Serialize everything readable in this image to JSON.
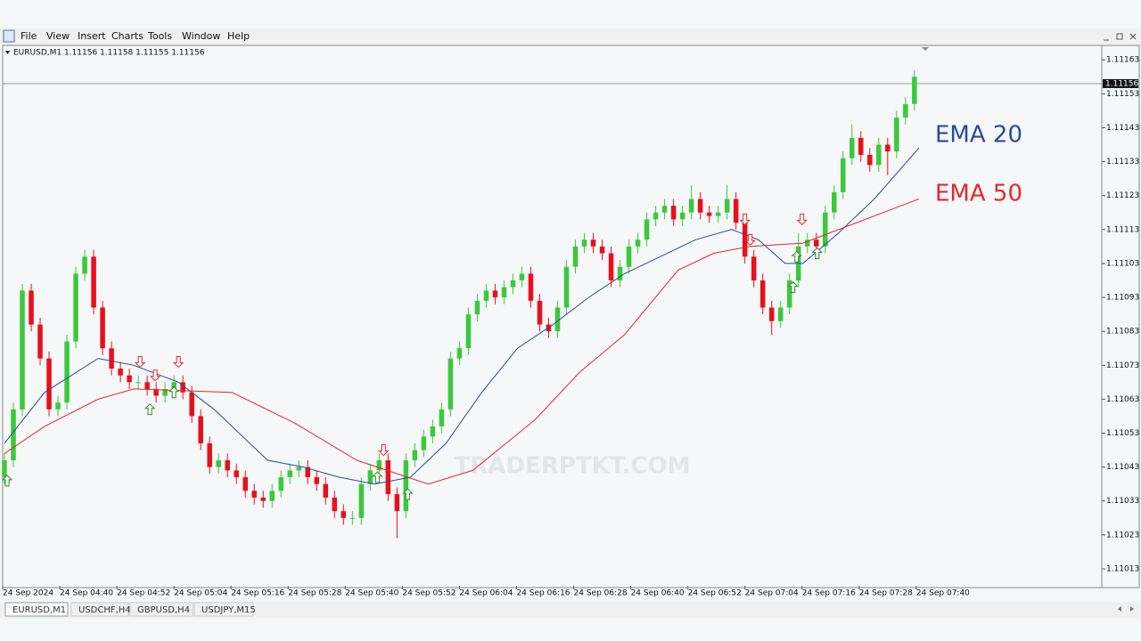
{
  "menu": [
    "File",
    "View",
    "Insert",
    "Charts",
    "Tools",
    "Window",
    "Help"
  ],
  "tabs": [
    "EURUSD,M1",
    "USDCHF,H4",
    "GBPUSD,H4",
    "USDJPY,M15"
  ],
  "chart_data": {
    "type": "candlestick",
    "symbol_info": "EURUSD,M1  1.11156 1.11158 1.11155 1.11156",
    "watermark": "TRADERPTKT.COM",
    "up_color": "#3cc83c",
    "down_color": "#e8101a",
    "open": [
      1.1104,
      1.11045,
      1.1106,
      1.11095,
      1.11085,
      1.11075,
      1.1106,
      1.11062,
      1.1108,
      1.111,
      1.11105,
      1.1109,
      1.11078,
      1.11072,
      1.1107,
      1.11068,
      1.11068,
      1.11066,
      1.11064,
      1.11066,
      1.11068,
      1.11065,
      1.11058,
      1.1105,
      1.11043,
      1.11045,
      1.11042,
      1.1104,
      1.11036,
      1.11034,
      1.11033,
      1.11036,
      1.1104,
      1.11042,
      1.11043,
      1.1104,
      1.11038,
      1.11034,
      1.1103,
      1.11028,
      1.11028,
      1.11038,
      1.11042,
      1.11045,
      1.11035,
      1.1103,
      1.11045,
      1.11048,
      1.11052,
      1.11055,
      1.1106,
      1.11075,
      1.11078,
      1.11088,
      1.11092,
      1.11095,
      1.11093,
      1.11096,
      1.11098,
      1.111,
      1.11092,
      1.11085,
      1.11083,
      1.1109,
      1.11102,
      1.11108,
      1.1111,
      1.11108,
      1.11106,
      1.11098,
      1.11102,
      1.11108,
      1.1111,
      1.11116,
      1.11118,
      1.1112,
      1.11116,
      1.11118,
      1.11122,
      1.11118,
      1.11117,
      1.11118,
      1.11122,
      1.11115,
      1.11105,
      1.11098,
      1.1109,
      1.11086,
      1.1109,
      1.11098,
      1.11108,
      1.1111,
      1.11108,
      1.11118,
      1.11124,
      1.11134,
      1.1114,
      1.11135,
      1.11132,
      1.11138,
      1.11136,
      1.11146,
      1.1115
    ],
    "high": [
      1.11047,
      1.11062,
      1.11097,
      1.11097,
      1.11087,
      1.11077,
      1.11064,
      1.11082,
      1.11102,
      1.11107,
      1.11107,
      1.11092,
      1.1108,
      1.11074,
      1.11072,
      1.1107,
      1.1107,
      1.11068,
      1.11068,
      1.1107,
      1.1107,
      1.11067,
      1.1106,
      1.11052,
      1.11047,
      1.11047,
      1.11044,
      1.11042,
      1.11038,
      1.11036,
      1.11038,
      1.11042,
      1.11044,
      1.11045,
      1.11045,
      1.11042,
      1.1104,
      1.11036,
      1.11032,
      1.1103,
      1.1104,
      1.11044,
      1.11047,
      1.11047,
      1.11037,
      1.11047,
      1.1105,
      1.11054,
      1.11057,
      1.11062,
      1.11077,
      1.1108,
      1.1109,
      1.11094,
      1.11097,
      1.11097,
      1.11098,
      1.111,
      1.11102,
      1.11102,
      1.11094,
      1.11087,
      1.11092,
      1.11104,
      1.1111,
      1.11112,
      1.11112,
      1.1111,
      1.11108,
      1.11104,
      1.1111,
      1.11112,
      1.11118,
      1.1112,
      1.11122,
      1.11122,
      1.1112,
      1.11126,
      1.11124,
      1.1112,
      1.1112,
      1.11126,
      1.11124,
      1.11117,
      1.11107,
      1.111,
      1.11092,
      1.11092,
      1.111,
      1.11112,
      1.11112,
      1.11112,
      1.1112,
      1.11126,
      1.11136,
      1.11144,
      1.11142,
      1.11137,
      1.1114,
      1.1114,
      1.11148,
      1.11152,
      1.1116
    ],
    "low": [
      1.11038,
      1.11043,
      1.11058,
      1.11083,
      1.11073,
      1.11058,
      1.11058,
      1.1106,
      1.11078,
      1.11098,
      1.11088,
      1.11076,
      1.1107,
      1.11068,
      1.11066,
      1.11066,
      1.11064,
      1.11062,
      1.11062,
      1.11064,
      1.11063,
      1.11056,
      1.11048,
      1.11041,
      1.11041,
      1.1104,
      1.11038,
      1.11034,
      1.11032,
      1.11031,
      1.11031,
      1.11034,
      1.11038,
      1.1104,
      1.11038,
      1.11036,
      1.11032,
      1.11028,
      1.11026,
      1.11026,
      1.11026,
      1.11036,
      1.1104,
      1.11033,
      1.11022,
      1.11028,
      1.11043,
      1.11046,
      1.1105,
      1.11053,
      1.11058,
      1.11073,
      1.11076,
      1.11086,
      1.1109,
      1.11091,
      1.11091,
      1.11094,
      1.11096,
      1.1109,
      1.11083,
      1.11081,
      1.11081,
      1.11088,
      1.111,
      1.11106,
      1.11106,
      1.11104,
      1.11096,
      1.11096,
      1.111,
      1.11106,
      1.11108,
      1.11114,
      1.11116,
      1.11114,
      1.11114,
      1.11116,
      1.11116,
      1.11115,
      1.11115,
      1.11116,
      1.11113,
      1.11103,
      1.11096,
      1.11088,
      1.11082,
      1.11084,
      1.11088,
      1.11096,
      1.11106,
      1.11106,
      1.11106,
      1.11116,
      1.11122,
      1.11132,
      1.11133,
      1.1113,
      1.1113,
      1.11129,
      1.11134,
      1.11144,
      1.11148
    ],
    "close": [
      1.11045,
      1.1106,
      1.11095,
      1.11085,
      1.11075,
      1.1106,
      1.11062,
      1.1108,
      1.111,
      1.11105,
      1.1109,
      1.11078,
      1.11072,
      1.1107,
      1.11068,
      1.11068,
      1.11066,
      1.11064,
      1.11066,
      1.11068,
      1.11065,
      1.11058,
      1.1105,
      1.11043,
      1.11045,
      1.11042,
      1.1104,
      1.11036,
      1.11034,
      1.11033,
      1.11036,
      1.1104,
      1.11042,
      1.11043,
      1.1104,
      1.11038,
      1.11034,
      1.1103,
      1.11028,
      1.11028,
      1.11038,
      1.11042,
      1.11045,
      1.11035,
      1.1103,
      1.11045,
      1.11048,
      1.11052,
      1.11055,
      1.1106,
      1.11075,
      1.11078,
      1.11088,
      1.11092,
      1.11095,
      1.11093,
      1.11096,
      1.11098,
      1.111,
      1.11092,
      1.11085,
      1.11083,
      1.1109,
      1.11102,
      1.11108,
      1.1111,
      1.11108,
      1.11106,
      1.11098,
      1.11102,
      1.11108,
      1.1111,
      1.11116,
      1.11118,
      1.1112,
      1.11116,
      1.11118,
      1.11122,
      1.11118,
      1.11117,
      1.11118,
      1.11122,
      1.11115,
      1.11105,
      1.11098,
      1.1109,
      1.11086,
      1.1109,
      1.11098,
      1.11108,
      1.1111,
      1.11108,
      1.11118,
      1.11124,
      1.11134,
      1.1114,
      1.11135,
      1.11132,
      1.11138,
      1.11136,
      1.11146,
      1.1115,
      1.11158
    ],
    "lines": [
      {
        "name": "EMA 20",
        "color": "#2b4a9e",
        "x": [
          0,
          4.5,
          10.5,
          14.5,
          19.5,
          23.5,
          29.5,
          33.5,
          37.5,
          41.5,
          45.5,
          49.5,
          53.5,
          57.5,
          61.5,
          65.5,
          69.5,
          73.5,
          77.5,
          81.5,
          84.5,
          87.5,
          89.5,
          93.5,
          97.5,
          102.5
        ],
        "values": [
          1.1105,
          1.11065,
          1.11075,
          1.11073,
          1.11068,
          1.1106,
          1.11045,
          1.11043,
          1.1104,
          1.11038,
          1.1104,
          1.1105,
          1.11065,
          1.11078,
          1.11085,
          1.11093,
          1.111,
          1.11105,
          1.1111,
          1.11113,
          1.1111,
          1.11103,
          1.11103,
          1.11112,
          1.11122,
          1.11137
        ]
      },
      {
        "name": "EMA 50",
        "color": "#e5272b",
        "x": [
          0,
          4.5,
          10.5,
          14.5,
          25.5,
          32.5,
          39.5,
          47.5,
          52.5,
          59.5,
          64.5,
          69.5,
          75.5,
          79.5,
          83.5,
          89.5,
          94.5,
          102.5
        ],
        "values": [
          1.11047,
          1.11055,
          1.11063,
          1.11066,
          1.11065,
          1.11056,
          1.11045,
          1.11038,
          1.11042,
          1.11057,
          1.11071,
          1.11082,
          1.11101,
          1.11106,
          1.11108,
          1.11109,
          1.11114,
          1.11122
        ]
      }
    ],
    "markers": [
      {
        "direction": "down",
        "color": "#e5272b",
        "x": [
          15.2,
          16.9,
          19.5,
          42.5,
          83,
          83.6,
          89.4
        ],
        "values": [
          1.11074,
          1.1107,
          1.11074,
          1.11048,
          1.11116,
          1.1111,
          1.11116
        ]
      },
      {
        "direction": "up",
        "color": "#2e8b2e",
        "x": [
          0.3,
          16.3,
          19,
          41.8,
          45.2,
          88.4,
          88.8,
          91.1
        ],
        "values": [
          1.11039,
          1.1106,
          1.11065,
          1.1104,
          1.11035,
          1.11096,
          1.11105,
          1.11106
        ]
      }
    ],
    "current_price": 1.11156,
    "xlim": [
      -0.2,
      123
    ],
    "ylim": [
      1.11008,
      1.11167
    ],
    "yticks": [
      1.11163,
      1.11153,
      1.11143,
      1.11133,
      1.11123,
      1.11113,
      1.11103,
      1.11093,
      1.11083,
      1.11073,
      1.11063,
      1.11053,
      1.11043,
      1.11033,
      1.11023,
      1.11013
    ],
    "xticks": [
      {
        "value": -0.2,
        "label": "24 Sep 2024"
      },
      {
        "value": 6.2,
        "label": "24 Sep 04:40"
      },
      {
        "value": 12.6,
        "label": "24 Sep 04:52"
      },
      {
        "value": 19,
        "label": "24 Sep 05:04"
      },
      {
        "value": 25.4,
        "label": "24 Sep 05:16"
      },
      {
        "value": 31.8,
        "label": "24 Sep 05:28"
      },
      {
        "value": 38.2,
        "label": "24 Sep 05:40"
      },
      {
        "value": 44.6,
        "label": "24 Sep 05:52"
      },
      {
        "value": 51,
        "label": "24 Sep 06:04"
      },
      {
        "value": 57.4,
        "label": "24 Sep 06:16"
      },
      {
        "value": 63.8,
        "label": "24 Sep 06:28"
      },
      {
        "value": 70.2,
        "label": "24 Sep 06:40"
      },
      {
        "value": 76.6,
        "label": "24 Sep 06:52"
      },
      {
        "value": 83,
        "label": "24 Sep 07:04"
      },
      {
        "value": 89.4,
        "label": "24 Sep 07:16"
      },
      {
        "value": 95.8,
        "label": "24 Sep 07:28"
      },
      {
        "value": 102.2,
        "label": "24 Sep 07:40"
      }
    ]
  }
}
